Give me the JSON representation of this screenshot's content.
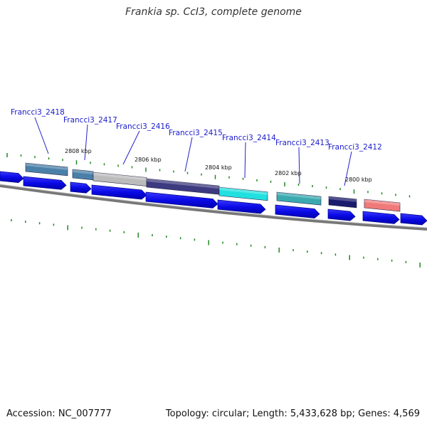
{
  "title": "Frankia sp. CcI3, complete genome",
  "footer": {
    "accession": "Accession: NC_007777",
    "summary": "Topology: circular; Length: 5,433,628 bp; Genes: 4,569"
  },
  "kbp_labels": [
    "2808 kbp",
    "2806 kbp",
    "2804 kbp",
    "2802 kbp",
    "2800 kbp"
  ],
  "genes": [
    {
      "label": "Francci3_2418",
      "color": "#4a80a8"
    },
    {
      "label": "Francci3_2417",
      "color": "#4a80a8"
    },
    {
      "label": "Francci3_2416",
      "color": "#bbbbbb"
    },
    {
      "label": "Francci3_2415",
      "color": "#3d3a80"
    },
    {
      "label": "Francci3_2414",
      "color": "#22e0e0"
    },
    {
      "label": "Francci3_2413",
      "color": "#3aaab0"
    },
    {
      "label": "Francci3_2412",
      "color": "#1a1a6e"
    },
    {
      "label": "",
      "color": "#f07a7a"
    }
  ],
  "colors": {
    "arrow": "#0a0ae6",
    "arrow_edge": "#00008a",
    "backbone": "#777777",
    "tick": "#228822",
    "leader": "#2222cc"
  }
}
